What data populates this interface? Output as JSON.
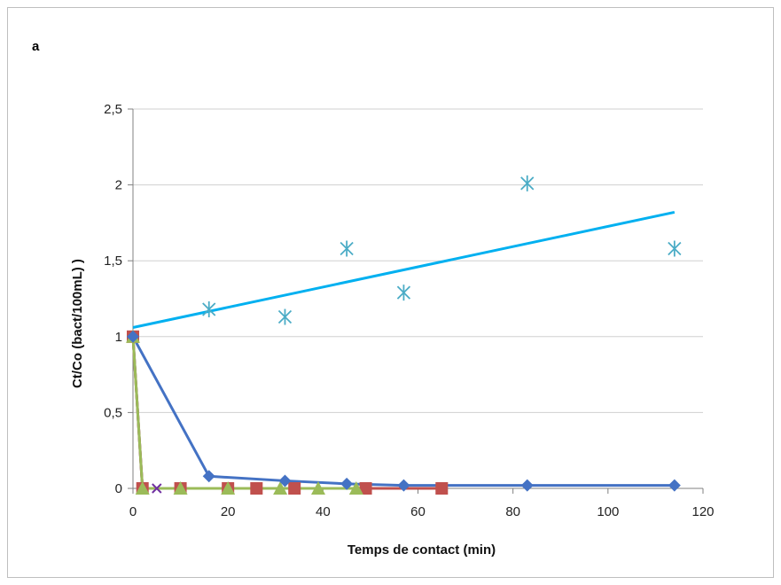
{
  "panel_label": "a",
  "chart_data": {
    "type": "line",
    "title": "",
    "xlabel": "Temps de contact (min)",
    "ylabel": "Ct/Co (bact/100mL) )",
    "xlim": [
      0,
      120
    ],
    "ylim": [
      0,
      2.5
    ],
    "x_ticks": [
      0,
      20,
      40,
      60,
      80,
      100,
      120
    ],
    "y_ticks": [
      0,
      0.5,
      1,
      1.5,
      2,
      2.5
    ],
    "x_tick_labels": [
      "0",
      "20",
      "40",
      "60",
      "80",
      "100",
      "120"
    ],
    "y_tick_labels": [
      "0",
      "0,5",
      "1",
      "1,5",
      "2",
      "2,5"
    ],
    "grid": "horizontal",
    "legend": "none",
    "series": [
      {
        "marker": "star",
        "color": "#4bacc6",
        "line": false,
        "x": [
          16,
          32,
          45,
          57,
          83,
          114
        ],
        "y": [
          1.18,
          1.13,
          1.58,
          1.29,
          2.01,
          1.58
        ]
      },
      {
        "marker": "none",
        "color": "#00b0f0",
        "line": true,
        "trendline": true,
        "x": [
          0,
          114
        ],
        "y": [
          1.06,
          1.82
        ]
      },
      {
        "marker": "diamond",
        "color": "#4472c4",
        "line": true,
        "x": [
          0,
          16,
          32,
          45,
          57,
          83,
          114
        ],
        "y": [
          1.0,
          0.08,
          0.05,
          0.03,
          0.02,
          0.02,
          0.02
        ]
      },
      {
        "marker": "cross",
        "color": "#7030a0",
        "line": true,
        "x": [
          0,
          2,
          5,
          10,
          20
        ],
        "y": [
          1.0,
          0.0,
          0.0,
          0.0,
          0.0
        ]
      },
      {
        "marker": "square",
        "color": "#c0504d",
        "line": true,
        "x": [
          0,
          2,
          10,
          20,
          26,
          34,
          49,
          65
        ],
        "y": [
          1.0,
          0.0,
          0.0,
          0.0,
          0.0,
          0.0,
          0.0,
          0.0
        ]
      },
      {
        "marker": "triangle",
        "color": "#9bbb59",
        "line": true,
        "x": [
          0,
          2,
          10,
          20,
          31,
          39,
          47
        ],
        "y": [
          1.0,
          0.0,
          0.0,
          0.0,
          0.0,
          0.0,
          0.0
        ]
      }
    ]
  }
}
